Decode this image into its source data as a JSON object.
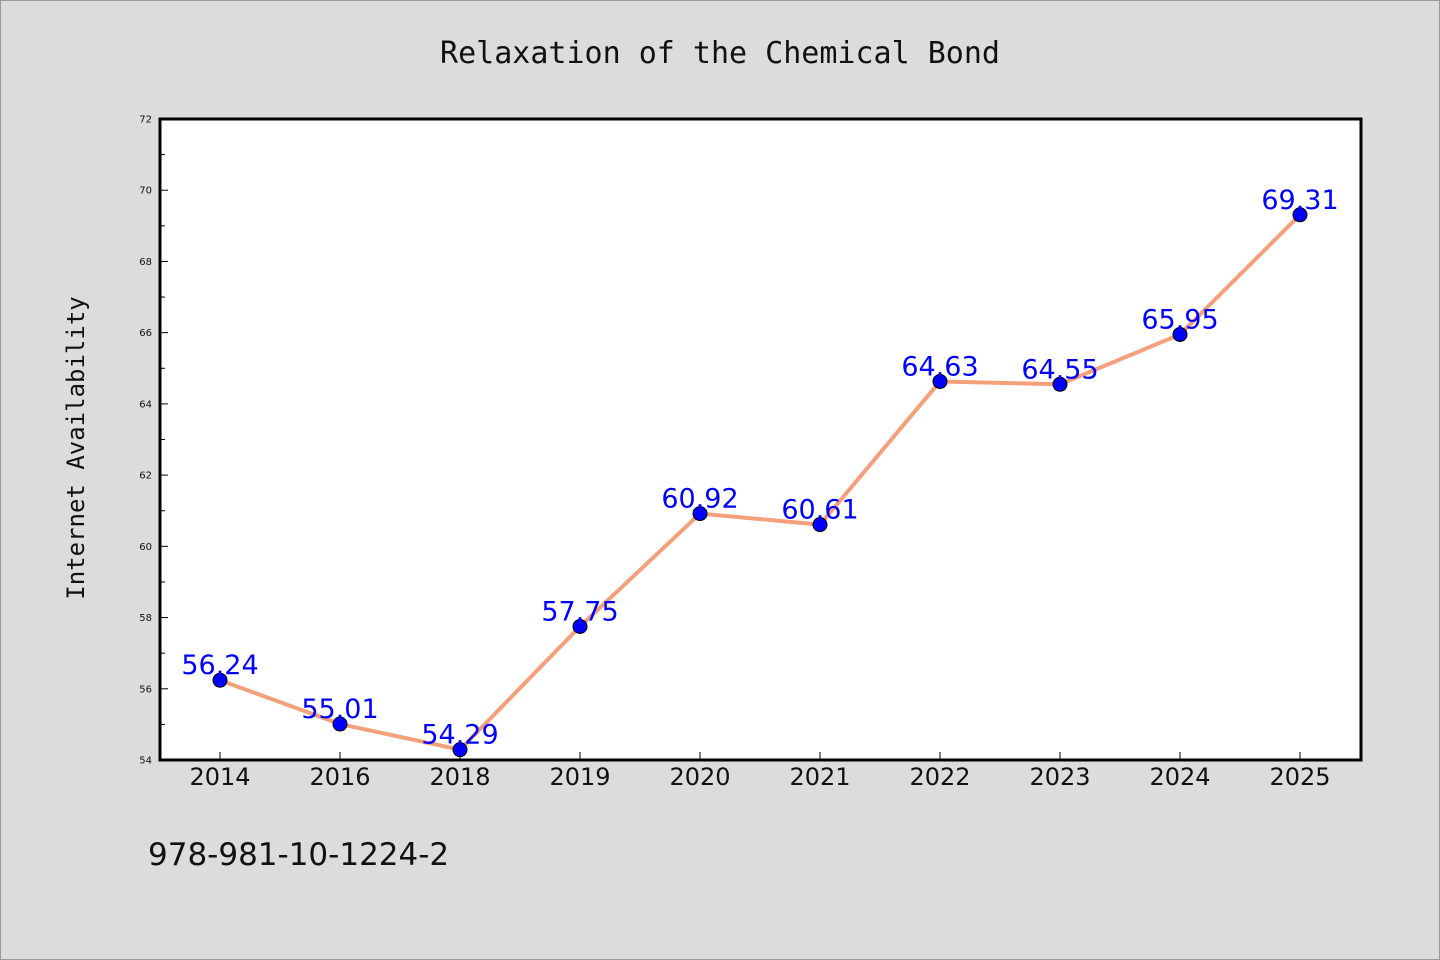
{
  "chart_data": {
    "type": "line",
    "title": "Relaxation of the Chemical Bond",
    "xlabel": "",
    "ylabel": "Internet Availability",
    "categories": [
      "2014",
      "2016",
      "2018",
      "2019",
      "2020",
      "2021",
      "2022",
      "2023",
      "2024",
      "2025"
    ],
    "series": [
      {
        "values": [
          56.24,
          55.01,
          54.29,
          57.75,
          60.92,
          60.61,
          64.63,
          64.55,
          65.95,
          69.31
        ],
        "data_labels": [
          "56.24",
          "55.01",
          "54.29",
          "57.75",
          "60.92",
          "60.61",
          "64.63",
          "64.55",
          "65.95",
          "69.31"
        ],
        "line_color": "#f4a07a",
        "marker_color": "#0000ff"
      }
    ],
    "ylim": [
      54,
      72
    ],
    "yticks": [
      "54",
      "56",
      "58",
      "60",
      "62",
      "64",
      "66",
      "68",
      "70",
      "72"
    ],
    "grid": false,
    "legend": "none"
  },
  "footer": {
    "isbn": "978-981-10-1224-2"
  },
  "colors": {
    "background": "#dcdcdc",
    "plot_area": "#ffffff",
    "line": "#f4a07a",
    "marker": "#0000ff",
    "data_label": "#0000ff"
  }
}
